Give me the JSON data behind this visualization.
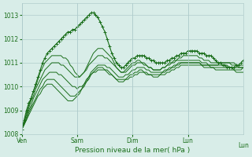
{
  "bg_color": "#d8ede8",
  "grid_color": "#b0cccc",
  "line_color": "#1a6e1a",
  "marker_color": "#1a6e1a",
  "xlabel": "Pression niveau de la mer( hPa )",
  "xlim": [
    0,
    96
  ],
  "ylim": [
    1008,
    1013.5
  ],
  "yticks": [
    1008,
    1009,
    1010,
    1011,
    1012,
    1013
  ],
  "xtick_positions": [
    0,
    24,
    48,
    72,
    96
  ],
  "xtick_labels": [
    "Ven",
    "Sam",
    "Dim",
    "Lun",
    ""
  ],
  "series": [
    [
      1008.2,
      1008.6,
      1009.0,
      1009.3,
      1009.5,
      1009.8,
      1010.1,
      1010.4,
      1010.7,
      1011.0,
      1011.2,
      1011.4,
      1011.5,
      1011.6,
      1011.7,
      1011.8,
      1011.9,
      1012.0,
      1012.1,
      1012.2,
      1012.3,
      1012.3,
      1012.4,
      1012.4,
      1012.5,
      1012.6,
      1012.7,
      1012.8,
      1012.9,
      1013.0,
      1013.1,
      1013.1,
      1013.0,
      1012.9,
      1012.7,
      1012.5,
      1012.3,
      1012.0,
      1011.7,
      1011.4,
      1011.2,
      1011.0,
      1010.9,
      1010.8,
      1010.8,
      1010.9,
      1011.0,
      1011.1,
      1011.2,
      1011.2,
      1011.3,
      1011.3,
      1011.3,
      1011.3,
      1011.2,
      1011.2,
      1011.1,
      1011.1,
      1011.0,
      1011.0,
      1011.0,
      1011.0,
      1011.0,
      1011.1,
      1011.1,
      1011.2,
      1011.2,
      1011.3,
      1011.3,
      1011.4,
      1011.4,
      1011.4,
      1011.5,
      1011.5,
      1011.5,
      1011.5,
      1011.5,
      1011.4,
      1011.4,
      1011.4,
      1011.3,
      1011.3,
      1011.3,
      1011.2,
      1011.1,
      1011.0,
      1011.0,
      1010.9,
      1010.9,
      1010.8,
      1010.8,
      1010.8,
      1010.8,
      1010.9,
      1010.9,
      1011.0,
      1011.1
    ],
    [
      1008.2,
      1008.5,
      1008.9,
      1009.2,
      1009.5,
      1009.8,
      1010.0,
      1010.3,
      1010.6,
      1010.8,
      1011.0,
      1011.1,
      1011.2,
      1011.3,
      1011.3,
      1011.3,
      1011.3,
      1011.3,
      1011.2,
      1011.2,
      1011.1,
      1010.9,
      1010.8,
      1010.6,
      1010.5,
      1010.4,
      1010.5,
      1010.6,
      1010.8,
      1011.0,
      1011.2,
      1011.4,
      1011.5,
      1011.6,
      1011.6,
      1011.6,
      1011.5,
      1011.4,
      1011.3,
      1011.2,
      1011.0,
      1010.8,
      1010.7,
      1010.6,
      1010.6,
      1010.7,
      1010.8,
      1010.9,
      1011.0,
      1011.0,
      1011.1,
      1011.1,
      1011.0,
      1011.0,
      1010.9,
      1010.8,
      1010.8,
      1010.7,
      1010.7,
      1010.7,
      1010.7,
      1010.8,
      1010.8,
      1010.9,
      1011.0,
      1011.0,
      1011.1,
      1011.1,
      1011.2,
      1011.2,
      1011.3,
      1011.3,
      1011.3,
      1011.3,
      1011.3,
      1011.3,
      1011.3,
      1011.2,
      1011.2,
      1011.1,
      1011.1,
      1011.1,
      1011.0,
      1011.0,
      1011.0,
      1011.0,
      1011.0,
      1011.0,
      1011.0,
      1011.0,
      1011.0,
      1010.9,
      1010.9,
      1010.9,
      1010.8,
      1010.8,
      1010.8
    ],
    [
      1008.2,
      1008.5,
      1008.8,
      1009.1,
      1009.4,
      1009.6,
      1009.9,
      1010.1,
      1010.3,
      1010.5,
      1010.7,
      1010.8,
      1010.9,
      1011.0,
      1011.0,
      1011.0,
      1011.0,
      1010.9,
      1010.9,
      1010.8,
      1010.7,
      1010.6,
      1010.5,
      1010.4,
      1010.4,
      1010.4,
      1010.5,
      1010.6,
      1010.7,
      1010.9,
      1011.0,
      1011.1,
      1011.2,
      1011.3,
      1011.3,
      1011.3,
      1011.2,
      1011.2,
      1011.1,
      1011.0,
      1010.9,
      1010.8,
      1010.7,
      1010.6,
      1010.6,
      1010.6,
      1010.7,
      1010.8,
      1010.9,
      1010.9,
      1011.0,
      1011.0,
      1011.0,
      1010.9,
      1010.9,
      1010.8,
      1010.8,
      1010.7,
      1010.7,
      1010.7,
      1010.7,
      1010.8,
      1010.8,
      1010.9,
      1010.9,
      1011.0,
      1011.0,
      1011.1,
      1011.1,
      1011.1,
      1011.1,
      1011.1,
      1011.1,
      1011.1,
      1011.1,
      1011.1,
      1011.1,
      1011.1,
      1011.0,
      1011.0,
      1011.0,
      1010.9,
      1010.9,
      1010.9,
      1010.9,
      1010.9,
      1011.0,
      1011.0,
      1011.0,
      1011.0,
      1011.0,
      1011.0,
      1011.0,
      1010.9,
      1010.9,
      1010.9,
      1010.9
    ],
    [
      1008.2,
      1008.4,
      1008.7,
      1009.0,
      1009.2,
      1009.5,
      1009.7,
      1009.9,
      1010.1,
      1010.3,
      1010.4,
      1010.5,
      1010.6,
      1010.6,
      1010.6,
      1010.6,
      1010.5,
      1010.5,
      1010.4,
      1010.3,
      1010.2,
      1010.1,
      1010.0,
      1010.0,
      1009.9,
      1010.0,
      1010.0,
      1010.1,
      1010.3,
      1010.4,
      1010.6,
      1010.7,
      1010.8,
      1010.9,
      1010.9,
      1010.9,
      1010.9,
      1010.8,
      1010.8,
      1010.7,
      1010.6,
      1010.5,
      1010.4,
      1010.4,
      1010.4,
      1010.5,
      1010.5,
      1010.6,
      1010.7,
      1010.7,
      1010.8,
      1010.8,
      1010.8,
      1010.8,
      1010.7,
      1010.7,
      1010.6,
      1010.6,
      1010.6,
      1010.6,
      1010.6,
      1010.6,
      1010.7,
      1010.7,
      1010.8,
      1010.8,
      1010.9,
      1010.9,
      1011.0,
      1011.0,
      1011.0,
      1011.0,
      1011.0,
      1011.0,
      1011.0,
      1011.0,
      1011.0,
      1011.0,
      1010.9,
      1010.9,
      1010.9,
      1010.9,
      1010.9,
      1010.9,
      1010.9,
      1010.9,
      1010.9,
      1010.9,
      1010.9,
      1010.9,
      1010.8,
      1010.8,
      1010.8,
      1010.8,
      1010.8,
      1010.8,
      1010.8
    ],
    [
      1008.2,
      1008.4,
      1008.6,
      1008.9,
      1009.1,
      1009.3,
      1009.5,
      1009.7,
      1009.9,
      1010.0,
      1010.2,
      1010.3,
      1010.3,
      1010.3,
      1010.3,
      1010.2,
      1010.1,
      1010.0,
      1009.9,
      1009.8,
      1009.7,
      1009.6,
      1009.6,
      1009.6,
      1009.7,
      1009.8,
      1009.9,
      1010.1,
      1010.2,
      1010.4,
      1010.5,
      1010.6,
      1010.7,
      1010.8,
      1010.8,
      1010.8,
      1010.7,
      1010.7,
      1010.6,
      1010.5,
      1010.4,
      1010.3,
      1010.3,
      1010.3,
      1010.3,
      1010.3,
      1010.4,
      1010.5,
      1010.5,
      1010.6,
      1010.6,
      1010.7,
      1010.7,
      1010.6,
      1010.6,
      1010.5,
      1010.5,
      1010.5,
      1010.5,
      1010.5,
      1010.5,
      1010.6,
      1010.6,
      1010.7,
      1010.7,
      1010.8,
      1010.8,
      1010.9,
      1010.9,
      1011.0,
      1011.0,
      1011.0,
      1011.0,
      1011.0,
      1011.0,
      1011.0,
      1011.0,
      1011.0,
      1010.9,
      1010.9,
      1010.9,
      1010.9,
      1010.8,
      1010.8,
      1010.8,
      1010.8,
      1010.8,
      1010.8,
      1010.8,
      1010.8,
      1010.8,
      1010.8,
      1010.7,
      1010.7,
      1010.7,
      1010.7,
      1010.8
    ],
    [
      1008.2,
      1008.4,
      1008.6,
      1008.8,
      1009.0,
      1009.2,
      1009.4,
      1009.6,
      1009.7,
      1009.9,
      1010.0,
      1010.1,
      1010.1,
      1010.1,
      1010.0,
      1009.9,
      1009.8,
      1009.7,
      1009.6,
      1009.5,
      1009.4,
      1009.4,
      1009.4,
      1009.5,
      1009.6,
      1009.7,
      1009.9,
      1010.0,
      1010.2,
      1010.3,
      1010.5,
      1010.6,
      1010.6,
      1010.7,
      1010.7,
      1010.7,
      1010.7,
      1010.6,
      1010.5,
      1010.5,
      1010.4,
      1010.3,
      1010.2,
      1010.2,
      1010.2,
      1010.3,
      1010.3,
      1010.4,
      1010.4,
      1010.5,
      1010.5,
      1010.6,
      1010.6,
      1010.6,
      1010.5,
      1010.5,
      1010.5,
      1010.4,
      1010.4,
      1010.4,
      1010.5,
      1010.5,
      1010.5,
      1010.6,
      1010.6,
      1010.7,
      1010.7,
      1010.8,
      1010.8,
      1010.9,
      1010.9,
      1010.9,
      1010.9,
      1010.9,
      1010.9,
      1010.9,
      1010.9,
      1010.9,
      1010.9,
      1010.8,
      1010.8,
      1010.8,
      1010.8,
      1010.8,
      1010.7,
      1010.7,
      1010.7,
      1010.7,
      1010.7,
      1010.7,
      1010.7,
      1010.7,
      1010.7,
      1010.6,
      1010.6,
      1010.6,
      1010.6
    ]
  ]
}
